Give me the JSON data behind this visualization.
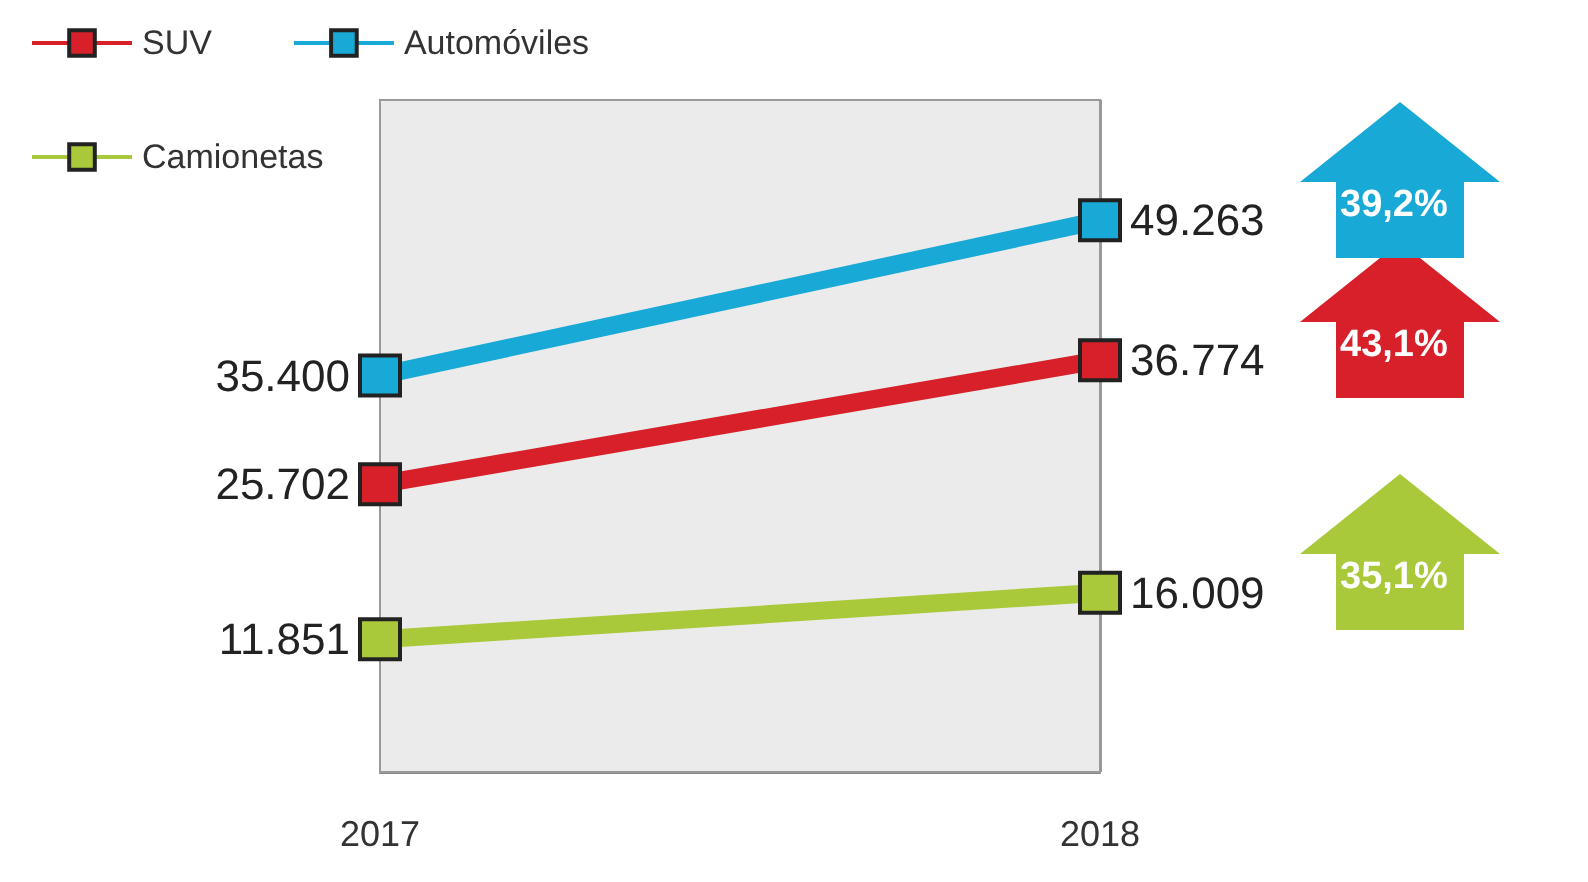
{
  "chart_data": {
    "type": "line",
    "categories": [
      "2017",
      "2018"
    ],
    "series": [
      {
        "name": "SUV",
        "color": "#d7202a",
        "values": [
          25702,
          36774
        ],
        "value_labels": [
          "25.702",
          "36.774"
        ]
      },
      {
        "name": "Automóviles",
        "color": "#19a9d6",
        "values": [
          35400,
          49263
        ],
        "value_labels": [
          "35.400",
          "49.263"
        ]
      },
      {
        "name": "Camionetas",
        "color": "#a9c93a",
        "values": [
          11851,
          16009
        ],
        "value_labels": [
          "11.851",
          "16.009"
        ]
      }
    ],
    "annotations": [
      "43,1%",
      "39,2%",
      "35,1%"
    ],
    "bands": [
      {
        "axis": "x",
        "from": "2017",
        "to": "2018",
        "color": "#ebebeb"
      }
    ],
    "marker": "square",
    "legend": "top left",
    "grid": "x",
    "tick_labels": "x"
  }
}
